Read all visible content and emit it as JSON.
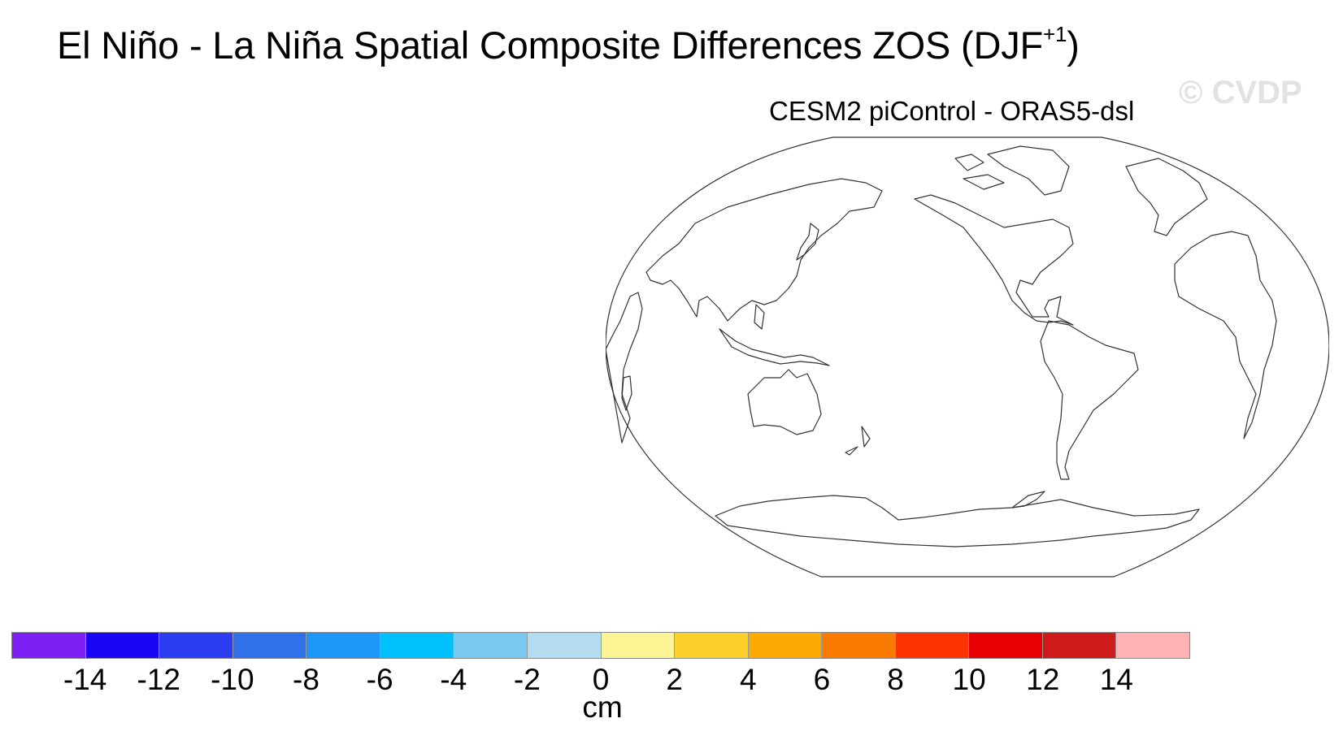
{
  "title": {
    "main": "El Niño - La Niña Spatial Composite Differences ZOS (DJF",
    "superscript": "+1",
    "close": ")"
  },
  "watermark": "© CVDP",
  "subtitle": "CESM2 piControl - ORAS5-dsl",
  "colorbar": {
    "colors": [
      "#7d20f5",
      "#1a05f5",
      "#2c3cf0",
      "#3070ea",
      "#1e96f8",
      "#00c0fb",
      "#7bc9f1",
      "#b3dcf1",
      "#fcf595",
      "#fcd22a",
      "#fbaa02",
      "#fb7a02",
      "#fb3401",
      "#e60001",
      "#cd1a1a",
      "#fdb2b4"
    ],
    "ticks": [
      "-14",
      "-12",
      "-10",
      "-8",
      "-6",
      "-4",
      "-2",
      "0",
      "2",
      "4",
      "6",
      "8",
      "10",
      "12",
      "14"
    ],
    "units": "cm"
  }
}
